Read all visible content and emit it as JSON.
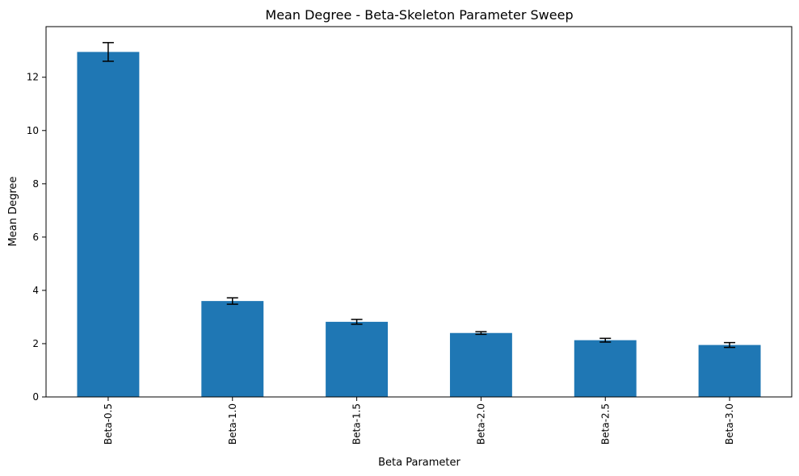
{
  "chart_data": {
    "type": "bar",
    "title": "Mean Degree - Beta-Skeleton Parameter Sweep",
    "xlabel": "Beta Parameter",
    "ylabel": "Mean Degree",
    "categories": [
      "Beta-0.5",
      "Beta-1.0",
      "Beta-1.5",
      "Beta-2.0",
      "Beta-2.5",
      "Beta-3.0"
    ],
    "values": [
      12.95,
      3.6,
      2.82,
      2.4,
      2.13,
      1.95
    ],
    "errors": [
      0.35,
      0.12,
      0.09,
      0.05,
      0.07,
      0.09
    ],
    "ylim": [
      0,
      13.9
    ],
    "yticks": [
      0,
      2,
      4,
      6,
      8,
      10,
      12
    ],
    "grid": false,
    "bar_color": "#1f77b4",
    "error_color": "#000000"
  }
}
